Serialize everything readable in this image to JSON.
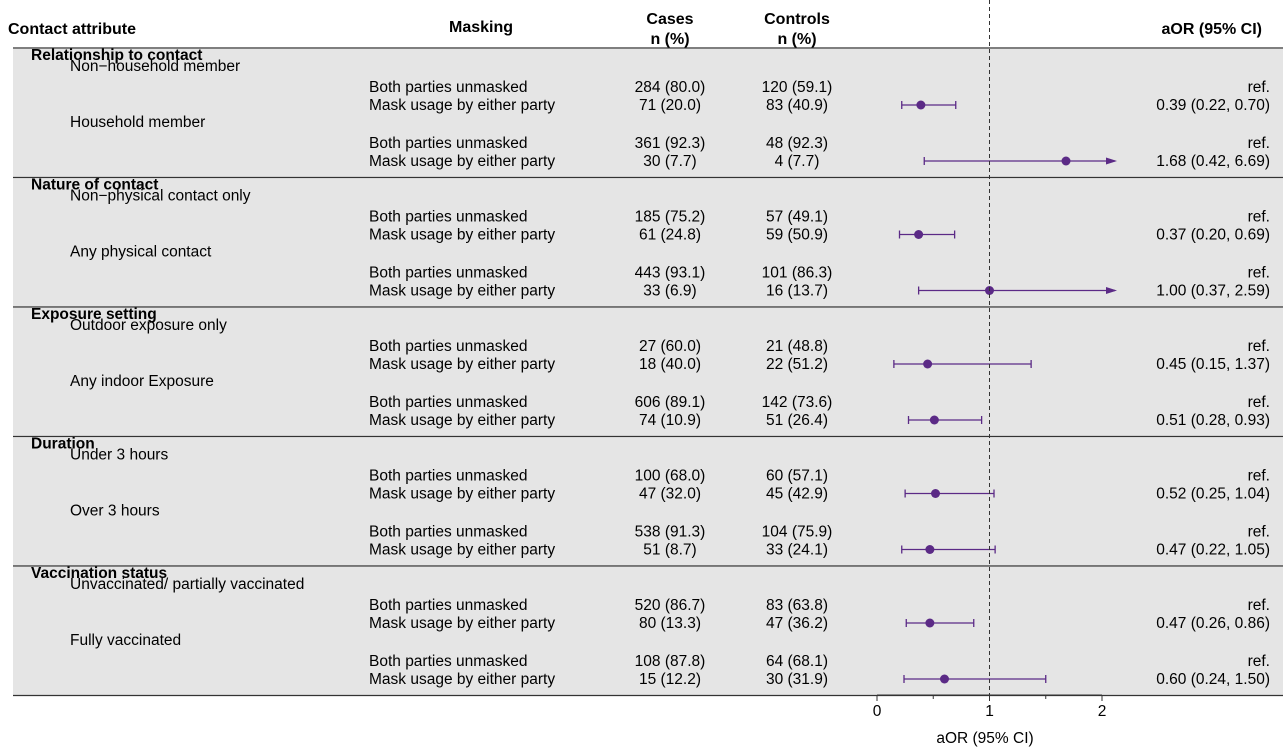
{
  "headers": {
    "attribute": "Contact attribute",
    "masking": "Masking",
    "cases": [
      "Cases",
      "n (%)"
    ],
    "controls": [
      "Controls",
      "n (%)"
    ],
    "aor": "aOR (95% CI)"
  },
  "colors": {
    "point": "#5b2a86",
    "band": "#e5e5e5",
    "text": "#1a1a1a"
  },
  "chart_data": {
    "type": "forest",
    "xlabel": "aOR (95% CI)",
    "xlim": [
      0,
      2.1
    ],
    "xticks": [
      0,
      1,
      2
    ],
    "reference_line": 1,
    "groups": [
      {
        "title": "Relationship to contact",
        "subgroups": [
          {
            "label": "Non−household member",
            "rows": [
              {
                "masking": "Both parties unmasked",
                "cases": "284 (80.0)",
                "controls": "120 (59.1)",
                "aor": "ref.",
                "est": null
              },
              {
                "masking": "Mask usage by either party",
                "cases": "71 (20.0)",
                "controls": "83 (40.9)",
                "aor": "0.39 (0.22, 0.70)",
                "est": 0.39,
                "lo": 0.22,
                "hi": 0.7
              }
            ]
          },
          {
            "label": "Household member",
            "rows": [
              {
                "masking": "Both parties unmasked",
                "cases": "361 (92.3)",
                "controls": "48 (92.3)",
                "aor": "ref.",
                "est": null
              },
              {
                "masking": "Mask usage by either party",
                "cases": "30 (7.7)",
                "controls": "4 (7.7)",
                "aor": "1.68 (0.42, 6.69)",
                "est": 1.68,
                "lo": 0.42,
                "hi": 6.69
              }
            ]
          }
        ]
      },
      {
        "title": "Nature of contact",
        "subgroups": [
          {
            "label": "Non−physical contact only",
            "rows": [
              {
                "masking": "Both parties unmasked",
                "cases": "185 (75.2)",
                "controls": "57 (49.1)",
                "aor": "ref.",
                "est": null
              },
              {
                "masking": "Mask usage by either party",
                "cases": "61 (24.8)",
                "controls": "59 (50.9)",
                "aor": "0.37 (0.20, 0.69)",
                "est": 0.37,
                "lo": 0.2,
                "hi": 0.69
              }
            ]
          },
          {
            "label": "Any physical contact",
            "rows": [
              {
                "masking": "Both parties unmasked",
                "cases": "443 (93.1)",
                "controls": "101 (86.3)",
                "aor": "ref.",
                "est": null
              },
              {
                "masking": "Mask usage by either party",
                "cases": "33 (6.9)",
                "controls": "16 (13.7)",
                "aor": "1.00 (0.37, 2.59)",
                "est": 1.0,
                "lo": 0.37,
                "hi": 2.59
              }
            ]
          }
        ]
      },
      {
        "title": "Exposure setting",
        "subgroups": [
          {
            "label": "Outdoor exposure only",
            "rows": [
              {
                "masking": "Both parties unmasked",
                "cases": "27 (60.0)",
                "controls": "21 (48.8)",
                "aor": "ref.",
                "est": null
              },
              {
                "masking": "Mask usage by either party",
                "cases": "18 (40.0)",
                "controls": "22 (51.2)",
                "aor": "0.45 (0.15, 1.37)",
                "est": 0.45,
                "lo": 0.15,
                "hi": 1.37
              }
            ]
          },
          {
            "label": "Any indoor Exposure",
            "rows": [
              {
                "masking": "Both parties unmasked",
                "cases": "606 (89.1)",
                "controls": "142 (73.6)",
                "aor": "ref.",
                "est": null
              },
              {
                "masking": "Mask usage by either party",
                "cases": "74 (10.9)",
                "controls": "51 (26.4)",
                "aor": "0.51 (0.28, 0.93)",
                "est": 0.51,
                "lo": 0.28,
                "hi": 0.93
              }
            ]
          }
        ]
      },
      {
        "title": "Duration",
        "subgroups": [
          {
            "label": "Under 3 hours",
            "rows": [
              {
                "masking": "Both parties unmasked",
                "cases": "100 (68.0)",
                "controls": "60 (57.1)",
                "aor": "ref.",
                "est": null
              },
              {
                "masking": "Mask usage by either party",
                "cases": "47 (32.0)",
                "controls": "45 (42.9)",
                "aor": "0.52 (0.25, 1.04)",
                "est": 0.52,
                "lo": 0.25,
                "hi": 1.04
              }
            ]
          },
          {
            "label": "Over 3 hours",
            "rows": [
              {
                "masking": "Both parties unmasked",
                "cases": "538 (91.3)",
                "controls": "104 (75.9)",
                "aor": "ref.",
                "est": null
              },
              {
                "masking": "Mask usage by either party",
                "cases": "51 (8.7)",
                "controls": "33 (24.1)",
                "aor": "0.47 (0.22, 1.05)",
                "est": 0.47,
                "lo": 0.22,
                "hi": 1.05
              }
            ]
          }
        ]
      },
      {
        "title": "Vaccination status",
        "subgroups": [
          {
            "label": "Unvaccinated/ partially vaccinated",
            "rows": [
              {
                "masking": "Both parties unmasked",
                "cases": "520 (86.7)",
                "controls": "83 (63.8)",
                "aor": "ref.",
                "est": null
              },
              {
                "masking": "Mask usage by either party",
                "cases": "80 (13.3)",
                "controls": "47 (36.2)",
                "aor": "0.47 (0.26, 0.86)",
                "est": 0.47,
                "lo": 0.26,
                "hi": 0.86
              }
            ]
          },
          {
            "label": "Fully vaccinated",
            "rows": [
              {
                "masking": "Both parties unmasked",
                "cases": "108 (87.8)",
                "controls": "64 (68.1)",
                "aor": "ref.",
                "est": null
              },
              {
                "masking": "Mask usage by either party",
                "cases": "15 (12.2)",
                "controls": "30 (31.9)",
                "aor": "0.60 (0.24, 1.50)",
                "est": 0.6,
                "lo": 0.24,
                "hi": 1.5
              }
            ]
          }
        ]
      }
    ]
  }
}
